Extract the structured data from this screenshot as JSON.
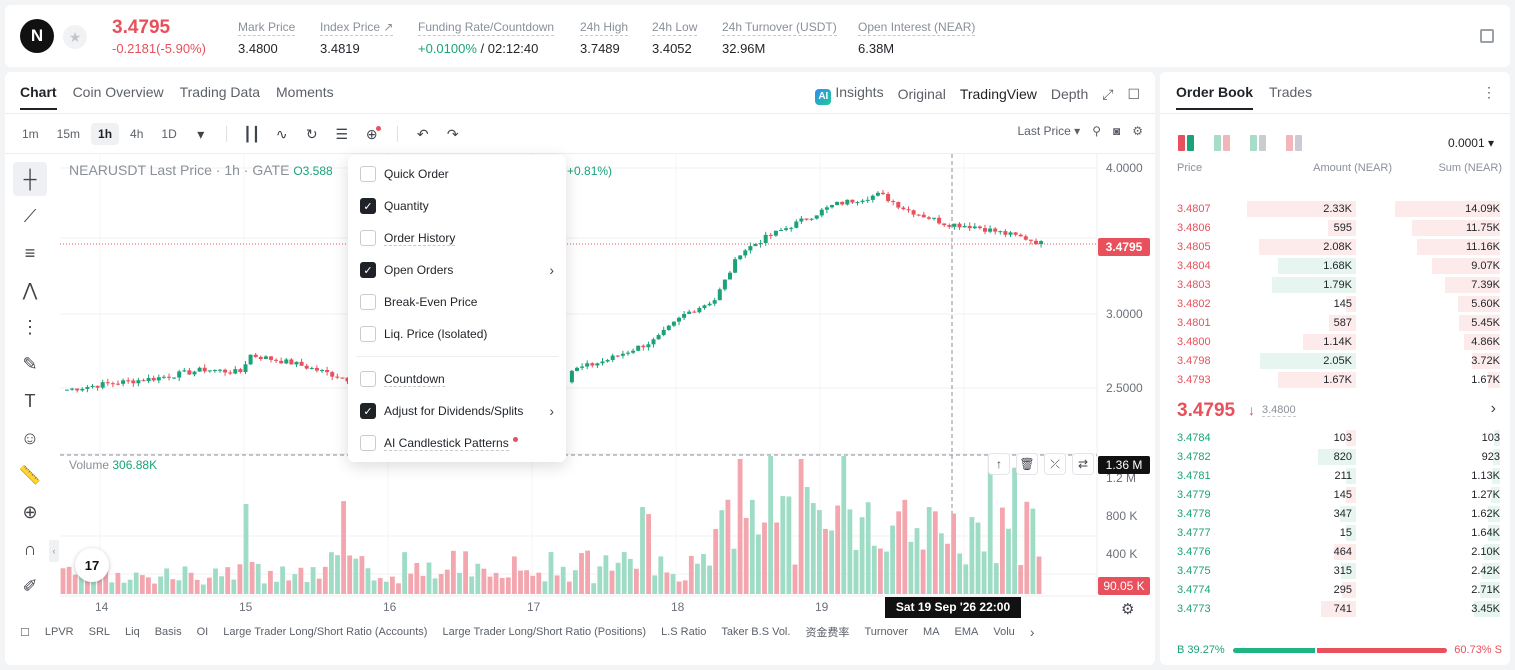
{
  "header": {
    "logo_letter": "N",
    "last_price": "3.4795",
    "change": "-0.2181(-5.90%)",
    "stats": [
      {
        "label": "Mark Price",
        "value": "3.4800"
      },
      {
        "label": "Index Price ↗",
        "value": "3.4819"
      },
      {
        "label": "Funding Rate/Countdown",
        "value_green": "+0.0100%",
        "value": " / 02:12:40"
      },
      {
        "label": "24h High",
        "value": "3.7489"
      },
      {
        "label": "24h Low",
        "value": "3.4052"
      },
      {
        "label": "24h Turnover (USDT)",
        "value": "32.96M"
      },
      {
        "label": "Open Interest (NEAR)",
        "value": "6.38M"
      }
    ]
  },
  "chart_tabs": [
    "Chart",
    "Coin Overview",
    "Trading Data",
    "Moments"
  ],
  "view_tabs": {
    "ai": "AI",
    "insights": "Insights",
    "original": "Original",
    "tradingview": "TradingView",
    "depth": "Depth"
  },
  "timeframes": [
    "1m",
    "15m",
    "1h",
    "4h",
    "1D"
  ],
  "price_source": "Last Price ▾",
  "legend": {
    "symbol": "NEARUSDT Last Price · 1h · GATE",
    "o": "O3.588",
    "chg": "+0.81%)"
  },
  "volume_legend": {
    "label": "Volume",
    "value": "306.88K"
  },
  "price_tag": "3.4795",
  "vol_tag": "1.36 M",
  "vol_tag2": "90.05 K",
  "time_tag": "Sat 19 Sep '26   22:00",
  "tv_logo": "17",
  "price_axis": [
    "4.0000",
    "3.0000",
    "2.5000"
  ],
  "volume_axis": [
    "1.2 M",
    "800 K",
    "400 K"
  ],
  "date_axis": [
    "14",
    "15",
    "16",
    "17",
    "18",
    "19"
  ],
  "indicators": [
    "LPVR",
    "SRL",
    "Liq",
    "Basis",
    "OI",
    "Large Trader Long/Short Ratio (Accounts)",
    "Large Trader Long/Short Ratio (Positions)",
    "L.S Ratio",
    "Taker B.S Vol.",
    "资金费率",
    "Turnover",
    "MA",
    "EMA",
    "Volu"
  ],
  "menu": [
    {
      "label": "Quick Order",
      "checked": false
    },
    {
      "label": "Quantity",
      "checked": true
    },
    {
      "label": "Order History",
      "checked": false
    },
    {
      "label": "Open Orders",
      "checked": true,
      "arrow": true
    },
    {
      "label": "Break-Even Price",
      "checked": false
    },
    {
      "label": "Liq. Price (Isolated)",
      "checked": false
    },
    {
      "label": "Countdown",
      "checked": false
    },
    {
      "label": "Adjust for Dividends/Splits",
      "checked": true,
      "arrow": true
    },
    {
      "label": "AI Candlestick Patterns",
      "checked": false,
      "dot": true
    }
  ],
  "orderbook": {
    "tabs": [
      "Order Book",
      "Trades"
    ],
    "precision": "0.0001 ▾",
    "headers": {
      "price": "Price",
      "amount": "Amount (NEAR)",
      "sum": "Sum (NEAR)"
    },
    "asks": [
      {
        "price": "3.4807",
        "amount": "2.33K",
        "sum": "14.09K"
      },
      {
        "price": "3.4806",
        "amount": "595",
        "sum": "11.75K"
      },
      {
        "price": "3.4805",
        "amount": "2.08K",
        "sum": "11.16K"
      },
      {
        "price": "3.4804",
        "amount": "1.68K",
        "sum": "9.07K"
      },
      {
        "price": "3.4803",
        "amount": "1.79K",
        "sum": "7.39K"
      },
      {
        "price": "3.4802",
        "amount": "145",
        "sum": "5.60K"
      },
      {
        "price": "3.4801",
        "amount": "587",
        "sum": "5.45K"
      },
      {
        "price": "3.4800",
        "amount": "1.14K",
        "sum": "4.86K"
      },
      {
        "price": "3.4798",
        "amount": "2.05K",
        "sum": "3.72K"
      },
      {
        "price": "3.4793",
        "amount": "1.67K",
        "sum": "1.67K"
      }
    ],
    "mid_price": "3.4795",
    "mid_arrow": "↓",
    "mark_price": "3.4800",
    "bids": [
      {
        "price": "3.4784",
        "amount": "103",
        "sum": "103"
      },
      {
        "price": "3.4782",
        "amount": "820",
        "sum": "923"
      },
      {
        "price": "3.4781",
        "amount": "211",
        "sum": "1.13K"
      },
      {
        "price": "3.4779",
        "amount": "145",
        "sum": "1.27K"
      },
      {
        "price": "3.4778",
        "amount": "347",
        "sum": "1.62K"
      },
      {
        "price": "3.4777",
        "amount": "15",
        "sum": "1.64K"
      },
      {
        "price": "3.4776",
        "amount": "464",
        "sum": "2.10K"
      },
      {
        "price": "3.4775",
        "amount": "315",
        "sum": "2.42K"
      },
      {
        "price": "3.4774",
        "amount": "295",
        "sum": "2.71K"
      },
      {
        "price": "3.4773",
        "amount": "741",
        "sum": "3.45K"
      }
    ],
    "buy_label": "B",
    "buy_ratio": "39.27%",
    "sell_ratio": "60.73%",
    "sell_label": "S"
  },
  "colors": {
    "up": "#1ba27a",
    "down": "#e8505b"
  }
}
